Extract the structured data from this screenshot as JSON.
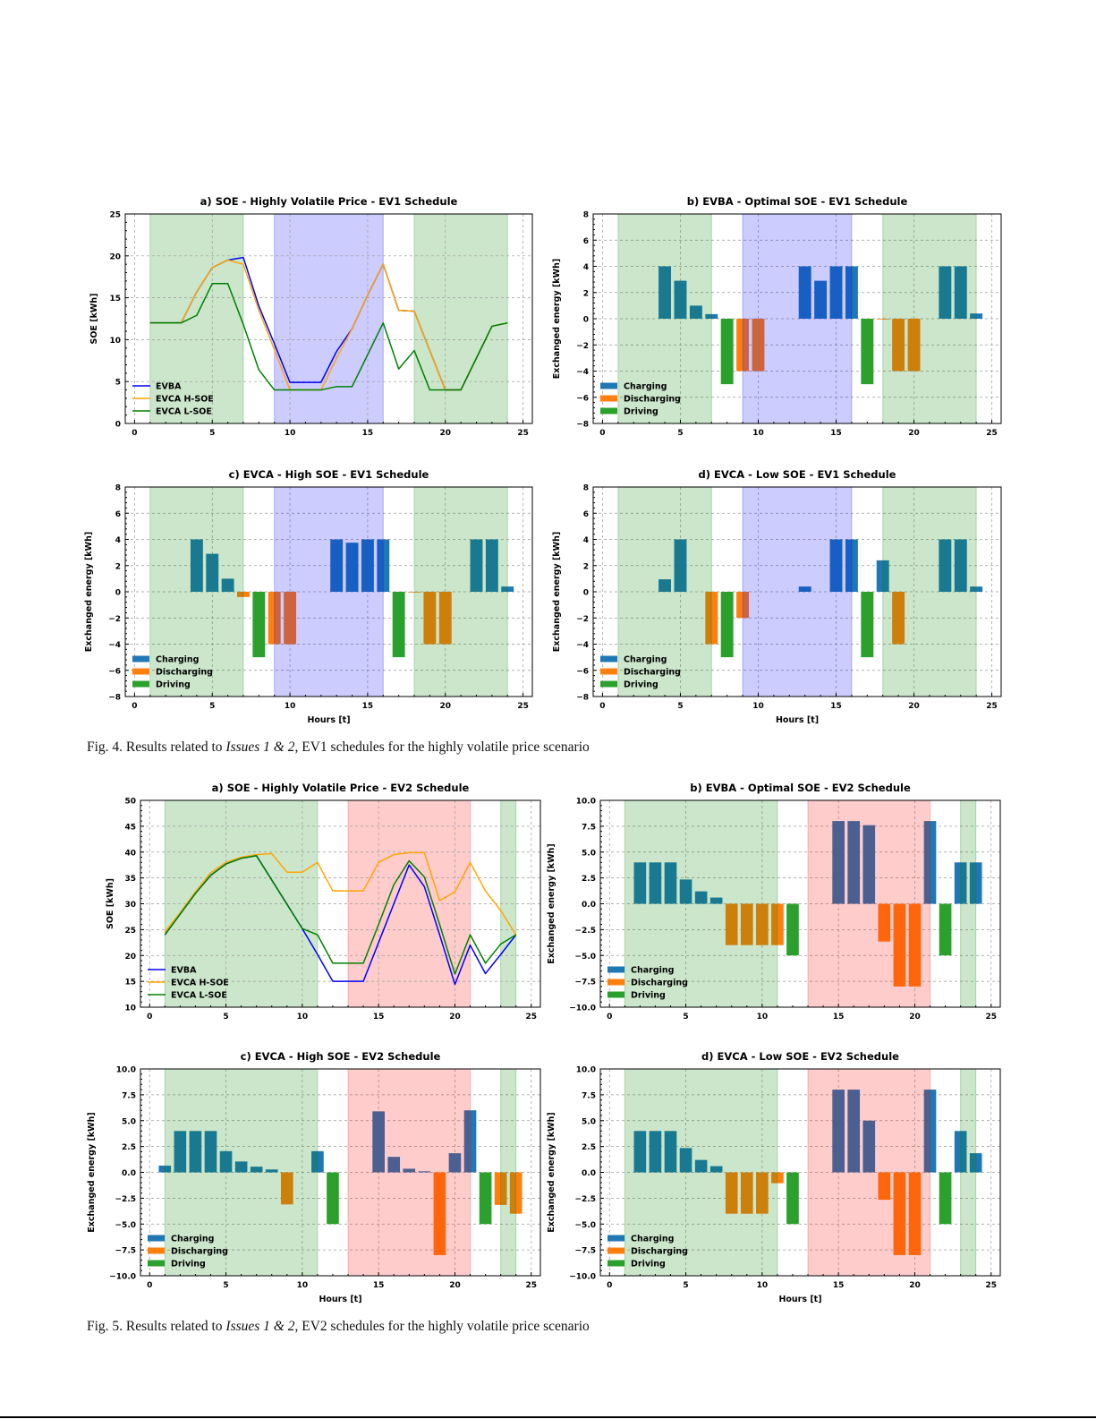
{
  "captions": [
    {
      "prefix": "Fig. 4. Results related to ",
      "italic": "Issues 1 & 2",
      "suffix": ", EV1 schedules for the highly volatile price scenario"
    },
    {
      "prefix": "Fig. 5. Results related to ",
      "italic": "Issues 1 & 2",
      "suffix": ", EV2 schedules for the highly volatile price scenario"
    }
  ],
  "colors": {
    "EVBA": "#0000ff",
    "EVCA H-SOE": "#ffa500",
    "EVCA L-SOE": "#008000",
    "Charging": "#1f77b4",
    "Discharging": "#ff7f0e",
    "Driving": "#2ca02c",
    "green": "#008000",
    "blue": "#0000ff",
    "red": "#ff0000"
  },
  "chart_data": [
    {
      "type": "line",
      "title": "a) SOE - Highly Volatile Price - EV1 Schedule",
      "xlabel": "",
      "ylabel": "SOE [kWh]",
      "xlim": [
        0,
        25
      ],
      "ylim": [
        0,
        25
      ],
      "xticks": [
        "0",
        "5",
        "10",
        "15",
        "20",
        "25"
      ],
      "yticks": [
        "0",
        "5",
        "10",
        "15",
        "20",
        "25"
      ],
      "grid": true,
      "legend": "bottom-left",
      "shaded": [
        {
          "from": 1,
          "to": 7,
          "color": "green"
        },
        {
          "from": 9,
          "to": 16,
          "color": "blue"
        },
        {
          "from": 18,
          "to": 24,
          "color": "green"
        }
      ],
      "x": [
        1,
        2,
        3,
        4,
        5,
        6,
        7,
        8,
        9,
        10,
        11,
        12,
        13,
        14,
        15,
        16,
        17,
        18,
        19,
        20,
        21,
        22,
        23,
        24
      ],
      "series": [
        {
          "name": "EVBA",
          "values": [
            12,
            12,
            12,
            15.7,
            18.6,
            19.5,
            19.8,
            14,
            9.5,
            4.9,
            4.9,
            4.9,
            8.6,
            11.3,
            15.3,
            19,
            13.5,
            13.4,
            8.7,
            4,
            4,
            7.8,
            11.6,
            12
          ]
        },
        {
          "name": "EVCA H-SOE",
          "values": [
            12,
            12,
            12,
            15.7,
            18.6,
            19.5,
            19,
            13.5,
            8.8,
            4,
            4,
            4,
            7.8,
            11.3,
            15.3,
            19,
            13.5,
            13.4,
            8.7,
            4,
            4,
            7.8,
            11.6,
            12
          ]
        },
        {
          "name": "EVCA L-SOE",
          "values": [
            12,
            12,
            12,
            12.9,
            16.7,
            16.7,
            11.8,
            6.4,
            4,
            4,
            4,
            4,
            4.4,
            4.4,
            8.2,
            12,
            6.5,
            8.7,
            4,
            4,
            4,
            7.8,
            11.6,
            12
          ]
        }
      ]
    },
    {
      "type": "bar",
      "title": "b) EVBA - Optimal SOE - EV1 Schedule",
      "xlabel": "",
      "ylabel": "Exchanged energy [kWh]",
      "xlim": [
        0,
        25
      ],
      "ylim": [
        -8,
        8
      ],
      "xticks": [
        "0",
        "5",
        "10",
        "15",
        "20",
        "25"
      ],
      "yticks": [
        "−8",
        "−6",
        "−4",
        "−2",
        "0",
        "2",
        "4",
        "6",
        "8"
      ],
      "grid": true,
      "legend": "bottom-left",
      "shaded": [
        {
          "from": 1,
          "to": 7,
          "color": "green"
        },
        {
          "from": 9,
          "to": 16,
          "color": "blue"
        },
        {
          "from": 18,
          "to": 24,
          "color": "green"
        }
      ],
      "series": [
        {
          "name": "Charging",
          "x": [
            4,
            5,
            6,
            7,
            13,
            14,
            15,
            16,
            22,
            23,
            24
          ],
          "values": [
            4,
            2.9,
            1,
            0.35,
            4,
            2.9,
            4,
            4,
            4,
            4,
            0.4
          ]
        },
        {
          "name": "Discharging",
          "x": [
            9,
            10,
            18,
            19,
            20
          ],
          "values": [
            -4,
            -4,
            -0.05,
            -4,
            -4
          ]
        },
        {
          "name": "Driving",
          "x": [
            8,
            17
          ],
          "values": [
            -5,
            -5
          ]
        }
      ]
    },
    {
      "type": "bar",
      "title": "c) EVCA - High SOE - EV1 Schedule",
      "xlabel": "Hours [t]",
      "ylabel": "Exchanged energy [kWh]",
      "xlim": [
        0,
        25
      ],
      "ylim": [
        -8,
        8
      ],
      "xticks": [
        "0",
        "5",
        "10",
        "15",
        "20",
        "25"
      ],
      "yticks": [
        "−8",
        "−6",
        "−4",
        "−2",
        "0",
        "2",
        "4",
        "6",
        "8"
      ],
      "grid": true,
      "legend": "bottom-left",
      "shaded": [
        {
          "from": 1,
          "to": 7,
          "color": "green"
        },
        {
          "from": 9,
          "to": 16,
          "color": "blue"
        },
        {
          "from": 18,
          "to": 24,
          "color": "green"
        }
      ],
      "series": [
        {
          "name": "Charging",
          "x": [
            4,
            5,
            6,
            13,
            14,
            15,
            16,
            22,
            23,
            24
          ],
          "values": [
            4,
            2.9,
            1,
            4,
            3.75,
            4,
            4,
            4,
            4,
            0.4
          ]
        },
        {
          "name": "Discharging",
          "x": [
            7,
            9,
            10,
            18,
            19,
            20
          ],
          "values": [
            -0.4,
            -4,
            -4,
            -0.05,
            -4,
            -4
          ]
        },
        {
          "name": "Driving",
          "x": [
            8,
            17
          ],
          "values": [
            -5,
            -5
          ]
        }
      ]
    },
    {
      "type": "bar",
      "title": "d) EVCA - Low SOE - EV1 Schedule",
      "xlabel": "Hours [t]",
      "ylabel": "Exchanged energy [kWh]",
      "xlim": [
        0,
        25
      ],
      "ylim": [
        -8,
        8
      ],
      "xticks": [
        "0",
        "5",
        "10",
        "15",
        "20",
        "25"
      ],
      "yticks": [
        "−8",
        "−6",
        "−4",
        "−2",
        "0",
        "2",
        "4",
        "6",
        "8"
      ],
      "grid": true,
      "legend": "bottom-left",
      "shaded": [
        {
          "from": 1,
          "to": 7,
          "color": "green"
        },
        {
          "from": 9,
          "to": 16,
          "color": "blue"
        },
        {
          "from": 18,
          "to": 24,
          "color": "green"
        }
      ],
      "series": [
        {
          "name": "Charging",
          "x": [
            4,
            5,
            13,
            15,
            16,
            18,
            22,
            23,
            24
          ],
          "values": [
            0.95,
            4,
            0.4,
            4,
            4,
            2.4,
            4,
            4,
            0.4
          ]
        },
        {
          "name": "Discharging",
          "x": [
            7,
            9,
            19
          ],
          "values": [
            -4,
            -2,
            -4
          ]
        },
        {
          "name": "Driving",
          "x": [
            8,
            17
          ],
          "values": [
            -5,
            -5
          ]
        }
      ]
    },
    {
      "type": "line",
      "title": "a) SOE - Highly Volatile Price - EV2 Schedule",
      "xlabel": "",
      "ylabel": "SOE [kWh]",
      "xlim": [
        0,
        25
      ],
      "ylim": [
        10,
        50
      ],
      "xticks": [
        "0",
        "5",
        "10",
        "15",
        "20",
        "25"
      ],
      "yticks": [
        "10",
        "15",
        "20",
        "25",
        "30",
        "35",
        "40",
        "45",
        "50"
      ],
      "grid": true,
      "legend": "bottom-left",
      "shaded": [
        {
          "from": 1,
          "to": 11,
          "color": "green"
        },
        {
          "from": 13,
          "to": 21,
          "color": "red"
        },
        {
          "from": 23,
          "to": 24,
          "color": "green"
        }
      ],
      "x": [
        1,
        2,
        3,
        4,
        5,
        6,
        7,
        8,
        9,
        10,
        11,
        12,
        13,
        14,
        15,
        16,
        17,
        18,
        19,
        20,
        21,
        22,
        23,
        24
      ],
      "series": [
        {
          "name": "EVBA",
          "values": [
            24,
            28,
            32,
            35.5,
            37.7,
            38.8,
            39.3,
            34.6,
            29.9,
            25.2,
            20.2,
            15,
            15,
            15,
            22.5,
            30,
            37.5,
            33.3,
            24,
            14.4,
            22,
            16.5,
            20.2,
            24
          ]
        },
        {
          "name": "EVCA H-SOE",
          "values": [
            24.5,
            28.3,
            32.3,
            36,
            38,
            39,
            39.5,
            39.7,
            36.1,
            36.1,
            38,
            32.5,
            32.5,
            32.5,
            38,
            39.5,
            39.9,
            39.9,
            30.6,
            32.3,
            38,
            32.5,
            28.7,
            24
          ]
        },
        {
          "name": "EVCA L-SOE",
          "values": [
            24,
            28,
            32,
            35.5,
            37.7,
            38.8,
            39.3,
            34.6,
            29.9,
            25.2,
            24,
            18.5,
            18.5,
            18.5,
            26,
            33.7,
            38.3,
            35.2,
            26,
            16.4,
            24,
            18.5,
            22.2,
            24
          ]
        }
      ]
    },
    {
      "type": "bar",
      "title": "b) EVBA - Optimal SOE - EV2 Schedule",
      "xlabel": "",
      "ylabel": "Exchanged energy [kWh]",
      "xlim": [
        0,
        25
      ],
      "ylim": [
        -10,
        10
      ],
      "xticks": [
        "0",
        "5",
        "10",
        "15",
        "20",
        "25"
      ],
      "yticks": [
        "−10.0",
        "−7.5",
        "−5.0",
        "−2.5",
        "0.0",
        "2.5",
        "5.0",
        "7.5",
        "10.0"
      ],
      "grid": true,
      "legend": "bottom-left",
      "shaded": [
        {
          "from": 1,
          "to": 11,
          "color": "green"
        },
        {
          "from": 13,
          "to": 21,
          "color": "red"
        },
        {
          "from": 23,
          "to": 24,
          "color": "green"
        }
      ],
      "series": [
        {
          "name": "Charging",
          "x": [
            2,
            3,
            4,
            5,
            6,
            7,
            15,
            16,
            17,
            21,
            23,
            24
          ],
          "values": [
            4,
            4,
            4,
            2.35,
            1.2,
            0.6,
            8,
            8,
            7.6,
            8,
            4,
            4
          ]
        },
        {
          "name": "Discharging",
          "x": [
            8,
            9,
            10,
            11,
            18,
            19,
            20
          ],
          "values": [
            -4,
            -4,
            -4,
            -4,
            -3.65,
            -8,
            -8
          ]
        },
        {
          "name": "Driving",
          "x": [
            12,
            22
          ],
          "values": [
            -5,
            -5
          ]
        }
      ]
    },
    {
      "type": "bar",
      "title": "c) EVCA - High SOE - EV2 Schedule",
      "xlabel": "Hours [t]",
      "ylabel": "Exchanged energy [kWh]",
      "xlim": [
        0,
        25
      ],
      "ylim": [
        -10,
        10
      ],
      "xticks": [
        "0",
        "5",
        "10",
        "15",
        "20",
        "25"
      ],
      "yticks": [
        "−10.0",
        "−7.5",
        "−5.0",
        "−2.5",
        "0.0",
        "2.5",
        "5.0",
        "7.5",
        "10.0"
      ],
      "grid": true,
      "legend": "bottom-left",
      "shaded": [
        {
          "from": 1,
          "to": 11,
          "color": "green"
        },
        {
          "from": 13,
          "to": 21,
          "color": "red"
        },
        {
          "from": 23,
          "to": 24,
          "color": "green"
        }
      ],
      "series": [
        {
          "name": "Charging",
          "x": [
            1,
            2,
            3,
            4,
            5,
            6,
            7,
            8,
            11,
            15,
            16,
            17,
            18,
            20,
            21
          ],
          "values": [
            0.65,
            4,
            4,
            4,
            2.05,
            1.05,
            0.55,
            0.28,
            2.05,
            5.9,
            1.5,
            0.35,
            0.1,
            1.85,
            6
          ]
        },
        {
          "name": "Discharging",
          "x": [
            9,
            19,
            23,
            24
          ],
          "values": [
            -3.1,
            -8,
            -3.15,
            -4
          ]
        },
        {
          "name": "Driving",
          "x": [
            12,
            22
          ],
          "values": [
            -5,
            -5
          ]
        }
      ]
    },
    {
      "type": "bar",
      "title": "d) EVCA - Low SOE - EV2 Schedule",
      "xlabel": "Hours [t]",
      "ylabel": "Exchanged energy [kWh]",
      "xlim": [
        0,
        25
      ],
      "ylim": [
        -10,
        10
      ],
      "xticks": [
        "0",
        "5",
        "10",
        "15",
        "20",
        "25"
      ],
      "yticks": [
        "−10.0",
        "−7.5",
        "−5.0",
        "−2.5",
        "0.0",
        "2.5",
        "5.0",
        "7.5",
        "10.0"
      ],
      "grid": true,
      "legend": "bottom-left",
      "shaded": [
        {
          "from": 1,
          "to": 11,
          "color": "green"
        },
        {
          "from": 13,
          "to": 21,
          "color": "red"
        },
        {
          "from": 23,
          "to": 24,
          "color": "green"
        }
      ],
      "series": [
        {
          "name": "Charging",
          "x": [
            2,
            3,
            4,
            5,
            6,
            7,
            15,
            16,
            17,
            21,
            23,
            24
          ],
          "values": [
            4,
            4,
            4,
            2.35,
            1.2,
            0.6,
            8,
            8,
            5,
            8,
            4,
            1.85
          ]
        },
        {
          "name": "Discharging",
          "x": [
            8,
            9,
            10,
            11,
            18,
            19,
            20
          ],
          "values": [
            -4,
            -4,
            -4,
            -1.05,
            -2.65,
            -8,
            -8
          ]
        },
        {
          "name": "Driving",
          "x": [
            12,
            22
          ],
          "values": [
            -5,
            -5
          ]
        }
      ]
    }
  ]
}
